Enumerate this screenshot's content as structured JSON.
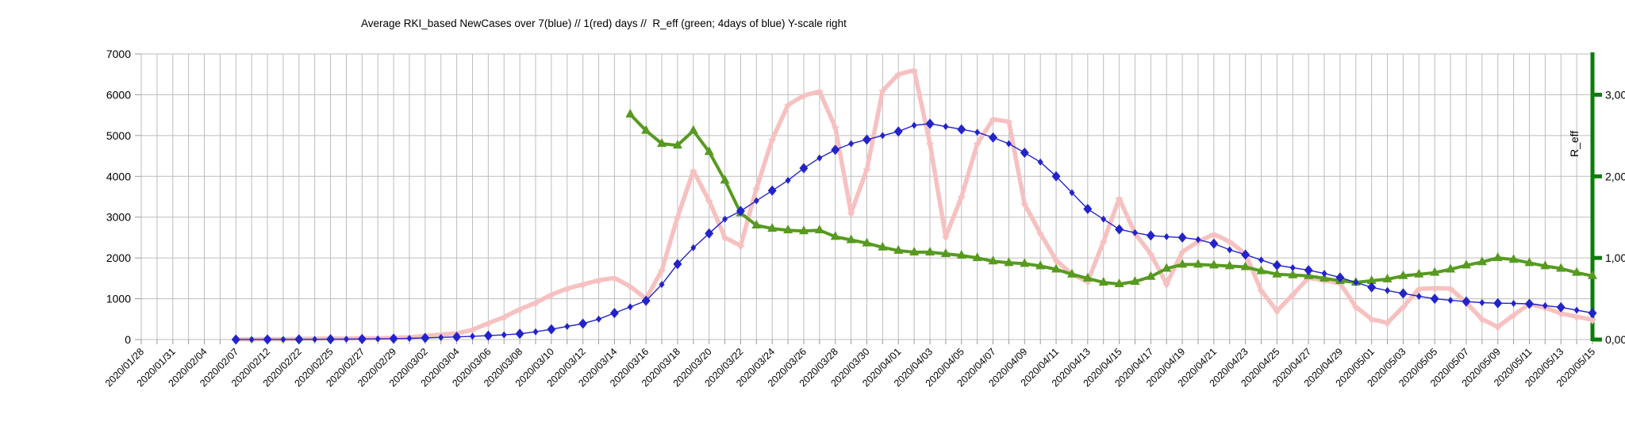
{
  "chart_data": {
    "type": "line",
    "title": "Average RKI_based NewCases over 7(blue) // 1(red) days //  R_eff (green; 4days of blue) Y-scale right",
    "grid": true,
    "legend_position": "none",
    "colors": {
      "newcases_7day": "#2323cb",
      "newcases_1day": "#f6c1c0",
      "reff_series": "#579a20",
      "right_axis": "#0a7d0a",
      "gridline": "#bdbdbd",
      "tick": "#9a9a9a",
      "text": "#000000"
    },
    "left_axis": {
      "label": "",
      "range": [
        0,
        7000
      ],
      "tick_values": [
        0,
        1000,
        2000,
        3000,
        4000,
        5000,
        6000,
        7000
      ],
      "tick_labels": [
        "0",
        "1000",
        "2000",
        "3000",
        "4000",
        "5000",
        "6000",
        "7000"
      ]
    },
    "right_axis": {
      "label": "R_eff",
      "range": [
        0,
        3.5
      ],
      "tick_values": [
        0,
        1,
        2,
        3
      ],
      "tick_labels": [
        "0,00",
        "1,00",
        "2,00",
        "3,00"
      ]
    },
    "x_axis": {
      "n_points": 93,
      "tick_every": 2,
      "tick_labels": [
        "2020/01/28",
        "2020/01/31",
        "2020/02/04",
        "2020/02/07",
        "2020/02/12",
        "2020/02/22",
        "2020/02/25",
        "2020/02/27",
        "2020/02/29",
        "2020/03/02",
        "2020/03/04",
        "2020/03/06",
        "2020/03/08",
        "2020/03/10",
        "2020/03/12",
        "2020/03/14",
        "2020/03/16",
        "2020/03/18",
        "2020/03/20",
        "2020/03/22",
        "2020/03/24",
        "2020/03/26",
        "2020/03/28",
        "2020/03/30",
        "2020/04/01",
        "2020/04/03",
        "2020/04/05",
        "2020/04/07",
        "2020/04/09",
        "2020/04/11",
        "2020/04/13",
        "2020/04/15",
        "2020/04/17",
        "2020/04/19",
        "2020/04/21",
        "2020/04/23",
        "2020/04/25",
        "2020/04/27",
        "2020/04/29",
        "2020/05/01",
        "2020/05/03",
        "2020/05/05",
        "2020/05/07",
        "2020/05/09",
        "2020/05/11",
        "2020/05/13",
        "2020/05/15"
      ]
    },
    "series": [
      {
        "id": "newcases-1day",
        "name": "NewCases averaged over 1 day (red)",
        "axis": "left",
        "color": "#f6c1c0",
        "marker": "triangle-down",
        "line_width": 5.5,
        "values": [
          null,
          null,
          null,
          null,
          null,
          null,
          8,
          5,
          12,
          8,
          15,
          20,
          28,
          22,
          35,
          30,
          45,
          55,
          90,
          120,
          150,
          240,
          400,
          550,
          740,
          900,
          1100,
          1250,
          1350,
          1450,
          1510,
          1300,
          1000,
          1700,
          3000,
          4135,
          3400,
          2500,
          2300,
          3700,
          4900,
          5750,
          5980,
          6080,
          5200,
          3100,
          4170,
          6100,
          6500,
          6600,
          4800,
          2520,
          3500,
          4800,
          5400,
          5340,
          3320,
          2600,
          1940,
          1600,
          1420,
          2400,
          3460,
          2600,
          2100,
          1360,
          2150,
          2400,
          2580,
          2400,
          2100,
          1200,
          700,
          1100,
          1515,
          1450,
          1380,
          800,
          500,
          410,
          800,
          1240,
          1260,
          1250,
          900,
          500,
          310,
          600,
          870,
          780,
          640,
          560,
          485
        ]
      },
      {
        "id": "reff",
        "name": "R_eff (green; 4 days of blue, right scale)",
        "axis": "right",
        "color": "#579a20",
        "marker": "triangle-up",
        "line_width": 4,
        "values": [
          null,
          null,
          null,
          null,
          null,
          null,
          null,
          null,
          null,
          null,
          null,
          null,
          null,
          null,
          null,
          null,
          null,
          null,
          null,
          null,
          null,
          null,
          null,
          null,
          null,
          null,
          null,
          null,
          null,
          null,
          null,
          2.76,
          2.56,
          2.4,
          2.38,
          2.56,
          2.3,
          1.95,
          1.55,
          1.4,
          1.36,
          1.34,
          1.33,
          1.34,
          1.26,
          1.22,
          1.18,
          1.13,
          1.09,
          1.07,
          1.07,
          1.05,
          1.03,
          1.0,
          0.96,
          0.94,
          0.93,
          0.9,
          0.86,
          0.8,
          0.75,
          0.7,
          0.68,
          0.71,
          0.77,
          0.87,
          0.92,
          0.92,
          0.91,
          0.9,
          0.89,
          0.84,
          0.8,
          0.79,
          0.78,
          0.75,
          0.72,
          0.7,
          0.72,
          0.74,
          0.78,
          0.8,
          0.82,
          0.86,
          0.91,
          0.95,
          1.0,
          0.98,
          0.94,
          0.9,
          0.87,
          0.82,
          0.78
        ]
      },
      {
        "id": "newcases-7day",
        "name": "NewCases averaged over 7 days (blue)",
        "axis": "left",
        "color": "#2323cb",
        "marker": "diamond",
        "line_width": 1.4,
        "values": [
          null,
          null,
          null,
          null,
          null,
          null,
          1,
          1,
          2,
          3,
          5,
          6,
          8,
          10,
          13,
          18,
          22,
          30,
          40,
          52,
          65,
          80,
          95,
          115,
          140,
          190,
          250,
          320,
          390,
          500,
          650,
          800,
          950,
          1350,
          1850,
          2250,
          2600,
          2950,
          3150,
          3400,
          3650,
          3900,
          4200,
          4450,
          4650,
          4800,
          4900,
          5000,
          5100,
          5250,
          5290,
          5220,
          5150,
          5080,
          4950,
          4800,
          4580,
          4350,
          4000,
          3600,
          3200,
          2950,
          2700,
          2620,
          2550,
          2520,
          2500,
          2450,
          2350,
          2200,
          2080,
          1950,
          1820,
          1760,
          1700,
          1620,
          1520,
          1400,
          1280,
          1200,
          1130,
          1060,
          1000,
          960,
          930,
          905,
          890,
          885,
          875,
          830,
          790,
          720,
          650
        ]
      }
    ]
  }
}
